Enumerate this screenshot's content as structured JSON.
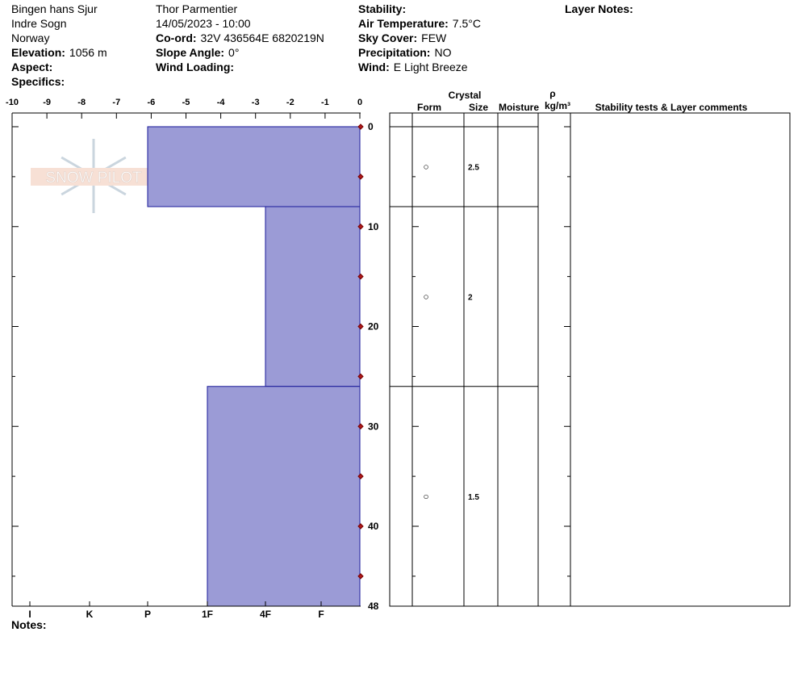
{
  "header": {
    "columns": [
      [
        {
          "value": "Bingen hans Sjur"
        },
        {
          "value": "Indre Sogn"
        },
        {
          "value": "Norway"
        },
        {
          "label": "Elevation:",
          "value": "1056 m"
        },
        {
          "label": "Aspect:"
        },
        {
          "label": "Specifics:"
        }
      ],
      [
        {
          "value": "Thor Parmentier"
        },
        {
          "value": "14/05/2023 - 10:00"
        },
        {
          "label": "Co-ord:",
          "value": "32V 436564E 6820219N"
        },
        {
          "label": "Slope Angle:",
          "value": "0°"
        },
        {
          "label": "Wind Loading:"
        }
      ],
      [
        {
          "label": "Stability:"
        },
        {
          "label": "Air Temperature:",
          "value": "7.5°C"
        },
        {
          "label": "Sky Cover:",
          "value": "FEW"
        },
        {
          "label": "Precipitation:",
          "value": "NO"
        },
        {
          "label": "Wind:",
          "value": "E Light Breeze"
        }
      ],
      [
        {
          "label": "Layer Notes:"
        }
      ]
    ]
  },
  "logo": "SNOW PILOT",
  "temperature_axis": {
    "lim": [
      -10,
      0
    ],
    "ticks": [
      -10,
      -9,
      -8,
      -7,
      -6,
      -5,
      -4,
      -3,
      -2,
      -1,
      0
    ]
  },
  "depth_axis": {
    "lim": [
      0,
      48
    ],
    "ticks": [
      0,
      10,
      20,
      30,
      40,
      48
    ],
    "minor_ticks": [
      5,
      15,
      25,
      35,
      45
    ]
  },
  "hardness_scale": [
    "I",
    "K",
    "P",
    "1F",
    "4F",
    "F"
  ],
  "temperatures": {
    "depths": [
      0,
      5,
      10,
      15,
      20,
      25,
      30,
      35,
      40,
      45
    ],
    "values": [
      0,
      0,
      0,
      0,
      0,
      0,
      0,
      0,
      0,
      0
    ]
  },
  "layers": [
    {
      "top": 0,
      "bottom": 8,
      "hardness": "P",
      "form": "○",
      "size": 2.5
    },
    {
      "top": 8,
      "bottom": 26,
      "hardness": "4F",
      "form": "○",
      "size": 2
    },
    {
      "top": 26,
      "bottom": 48,
      "hardness": "1F",
      "form": "○",
      "size": 1.5
    }
  ],
  "table_headers": {
    "crystal": "Crystal",
    "form": "Form",
    "size": "Size",
    "moisture": "Moisture",
    "rho": "ρ",
    "density_unit": "kg/m³",
    "comments": "Stability tests & Layer comments"
  },
  "notes_label": "Notes:"
}
